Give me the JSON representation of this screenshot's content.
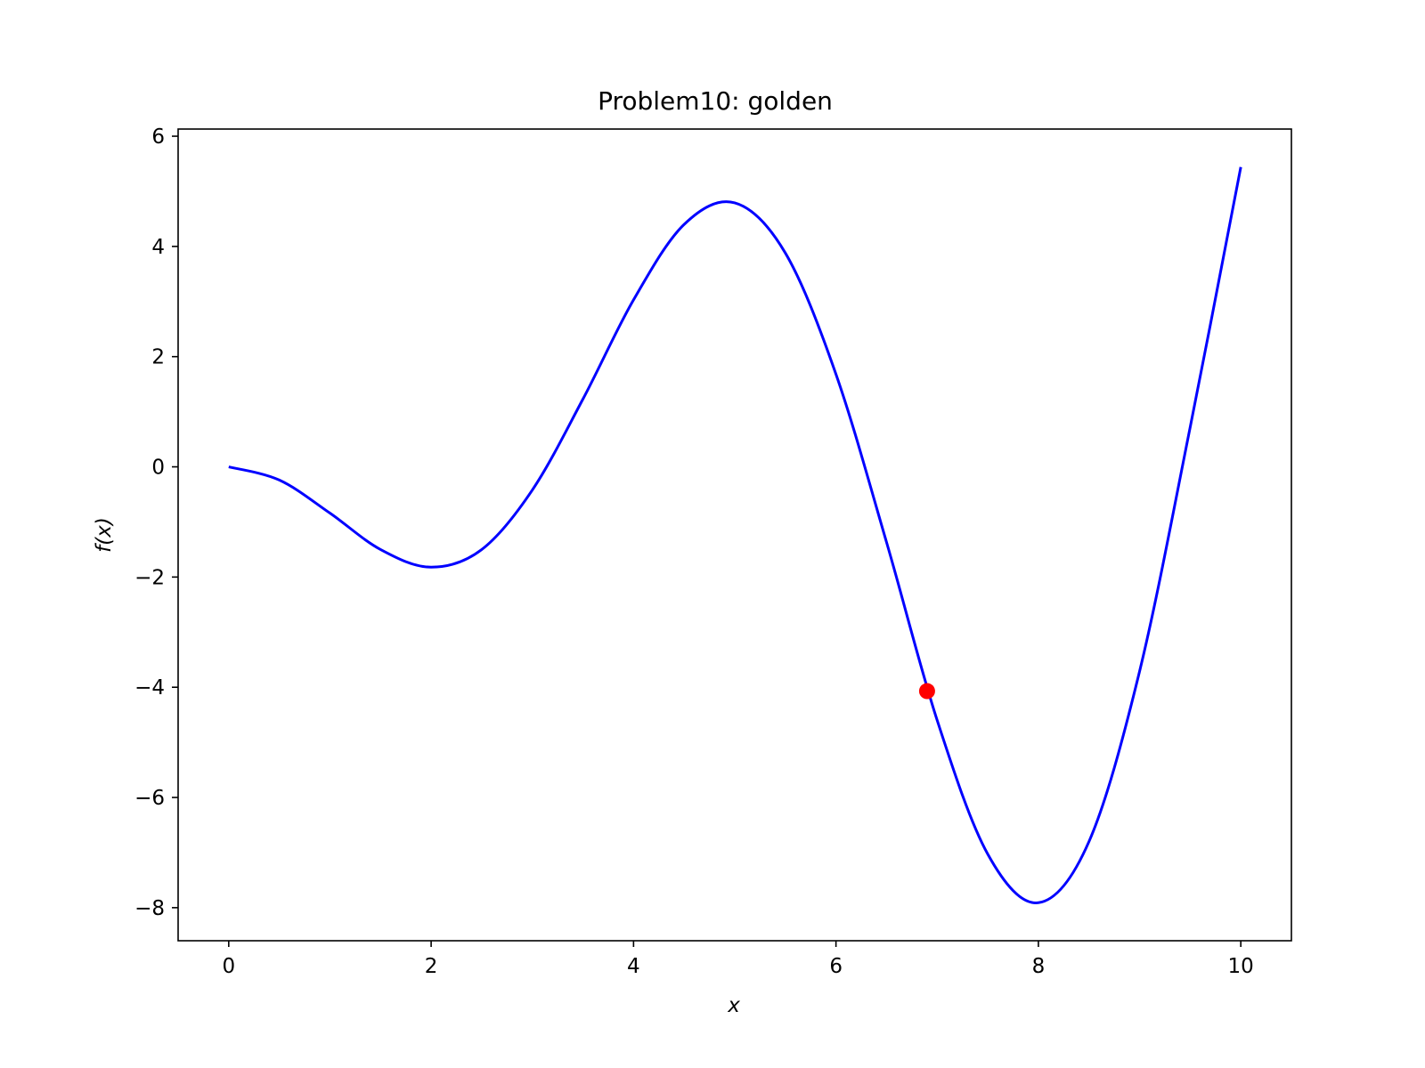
{
  "chart_data": {
    "type": "line",
    "title": "Problem10: golden",
    "xlabel": "x",
    "ylabel": "f(x)",
    "xlim": [
      -0.5,
      10.5
    ],
    "ylim": [
      -8.6,
      6.13
    ],
    "grid": false,
    "x_ticks": [
      0,
      2,
      4,
      6,
      8,
      10
    ],
    "x_tick_labels": [
      "0",
      "2",
      "4",
      "6",
      "8",
      "10"
    ],
    "y_ticks": [
      6,
      4,
      2,
      0,
      -2,
      -4,
      -6,
      -8
    ],
    "y_tick_labels": [
      "6",
      "4",
      "2",
      "0",
      "−2",
      "−4",
      "−6",
      "−8"
    ],
    "series": [
      {
        "color": "#0000ff",
        "x": [
          0,
          0.5,
          1,
          1.5,
          2,
          2.5,
          3,
          3.5,
          4,
          4.5,
          5,
          5.5,
          6,
          6.5,
          7,
          7.5,
          8,
          8.5,
          9,
          9.5,
          10
        ],
        "y": [
          0,
          -0.24,
          -0.84,
          -1.5,
          -1.82,
          -1.5,
          -0.42,
          1.23,
          3.03,
          4.4,
          4.79,
          3.88,
          1.68,
          -1.37,
          -4.6,
          -7.03,
          -7.91,
          -6.8,
          -3.71,
          0.72,
          5.44
        ]
      }
    ],
    "points": [
      {
        "color": "#ff0000",
        "x": 6.9,
        "y": -4.07
      }
    ]
  }
}
